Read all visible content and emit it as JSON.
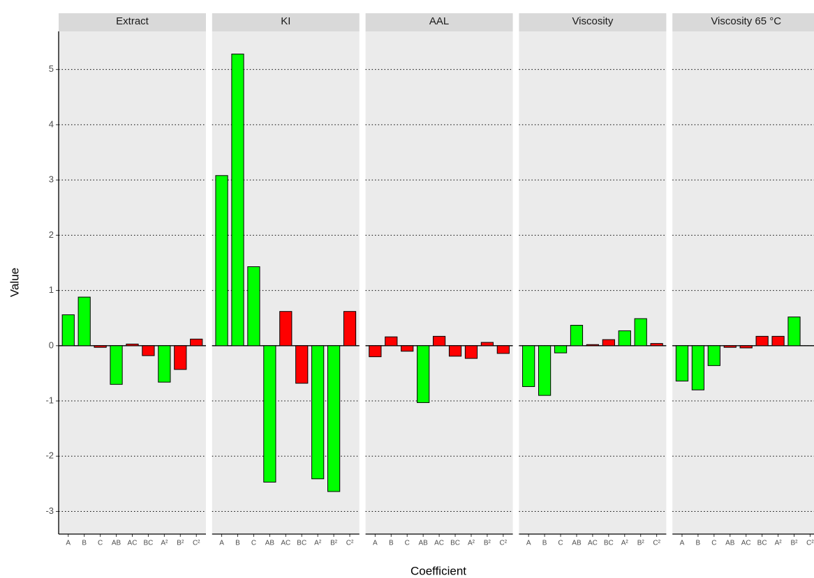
{
  "axis_labels": {
    "x": "Coefficient",
    "y": "Value"
  },
  "chart_data": [
    {
      "type": "bar",
      "title": "Extract",
      "categories": [
        "A",
        "B",
        "C",
        "AB",
        "AC",
        "BC",
        "A²",
        "B²",
        "C²"
      ],
      "values": [
        0.56,
        0.88,
        -0.03,
        -0.7,
        0.03,
        -0.18,
        -0.66,
        -0.43,
        0.12
      ],
      "colors": [
        "#00ff00",
        "#00ff00",
        "#ff0000",
        "#00ff00",
        "#ff0000",
        "#ff0000",
        "#00ff00",
        "#ff0000",
        "#ff0000"
      ],
      "ylim": [
        -3.41,
        5.69
      ],
      "yticks": [
        -3,
        -2,
        -1,
        0,
        1,
        2,
        3,
        4,
        5
      ],
      "grid": true
    },
    {
      "type": "bar",
      "title": "KI",
      "categories": [
        "A",
        "B",
        "C",
        "AB",
        "AC",
        "BC",
        "A²",
        "B²",
        "C²"
      ],
      "values": [
        3.08,
        5.28,
        1.43,
        -2.47,
        0.62,
        -0.68,
        -2.41,
        -2.64,
        0.62
      ],
      "colors": [
        "#00ff00",
        "#00ff00",
        "#00ff00",
        "#00ff00",
        "#ff0000",
        "#ff0000",
        "#00ff00",
        "#00ff00",
        "#ff0000"
      ],
      "ylim": [
        -3.41,
        5.69
      ],
      "yticks": [
        -3,
        -2,
        -1,
        0,
        1,
        2,
        3,
        4,
        5
      ],
      "grid": true
    },
    {
      "type": "bar",
      "title": "AAL",
      "categories": [
        "A",
        "B",
        "C",
        "AB",
        "AC",
        "BC",
        "A²",
        "B²",
        "C²"
      ],
      "values": [
        -0.2,
        0.16,
        -0.1,
        -1.03,
        0.17,
        -0.19,
        -0.23,
        0.06,
        -0.14
      ],
      "colors": [
        "#ff0000",
        "#ff0000",
        "#ff0000",
        "#00ff00",
        "#ff0000",
        "#ff0000",
        "#ff0000",
        "#ff0000",
        "#ff0000"
      ],
      "ylim": [
        -3.41,
        5.69
      ],
      "yticks": [
        -3,
        -2,
        -1,
        0,
        1,
        2,
        3,
        4,
        5
      ],
      "grid": true
    },
    {
      "type": "bar",
      "title": "Viscosity",
      "categories": [
        "A",
        "B",
        "C",
        "AB",
        "AC",
        "BC",
        "A²",
        "B²",
        "C²"
      ],
      "values": [
        -0.74,
        -0.9,
        -0.13,
        0.37,
        0.02,
        0.11,
        0.27,
        0.49,
        0.04
      ],
      "colors": [
        "#00ff00",
        "#00ff00",
        "#00ff00",
        "#00ff00",
        "#ff0000",
        "#ff0000",
        "#00ff00",
        "#00ff00",
        "#ff0000"
      ],
      "ylim": [
        -3.41,
        5.69
      ],
      "yticks": [
        -3,
        -2,
        -1,
        0,
        1,
        2,
        3,
        4,
        5
      ],
      "grid": true
    },
    {
      "type": "bar",
      "title": "Viscosity 65 °C",
      "categories": [
        "A",
        "B",
        "C",
        "AB",
        "AC",
        "BC",
        "A²",
        "B²",
        "C²"
      ],
      "values": [
        -0.64,
        -0.8,
        -0.36,
        -0.03,
        -0.04,
        0.17,
        0.17,
        0.52,
        0
      ],
      "colors": [
        "#00ff00",
        "#00ff00",
        "#00ff00",
        "#ff0000",
        "#ff0000",
        "#ff0000",
        "#ff0000",
        "#00ff00",
        "#ff0000"
      ],
      "ylim": [
        -3.41,
        5.69
      ],
      "yticks": [
        -3,
        -2,
        -1,
        0,
        1,
        2,
        3,
        4,
        5
      ],
      "grid": true
    }
  ]
}
